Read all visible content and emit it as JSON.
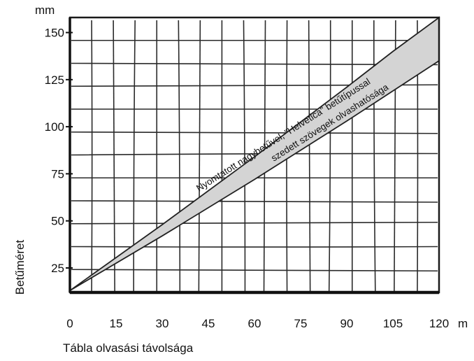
{
  "chart_data": {
    "type": "area",
    "title": "",
    "xlabel": "Tábla olvasási távolsága",
    "ylabel": "Betűméret",
    "x_unit": "m",
    "y_unit": "mm",
    "xlim": [
      0,
      120
    ],
    "ylim": [
      12,
      158
    ],
    "x_ticks": [
      0,
      15,
      30,
      45,
      60,
      75,
      90,
      105,
      120
    ],
    "y_ticks": [
      25,
      50,
      75,
      100,
      125,
      150
    ],
    "x_tick_labels": [
      "0",
      "15",
      "30",
      "45",
      "60",
      "75",
      "90",
      "105",
      "120"
    ],
    "y_tick_labels": [
      "25",
      "50",
      "75",
      "100",
      "125",
      "150"
    ],
    "grid": true,
    "band_color": "#d4d4d4",
    "band_annotation": {
      "line1": "Nyomtatott nagybetűvel, \"Helvetica\" betűtípussal",
      "line2": "szedett szövegek olvashatósága"
    },
    "series": [
      {
        "role": "upper_bound",
        "x": [
          0,
          30,
          60,
          90,
          105,
          120
        ],
        "values": [
          13,
          48,
          84,
          121,
          140,
          158
        ]
      },
      {
        "role": "lower_bound",
        "x": [
          0,
          30,
          60,
          90,
          120
        ],
        "values": [
          13,
          42,
          72,
          103,
          135
        ]
      }
    ]
  }
}
